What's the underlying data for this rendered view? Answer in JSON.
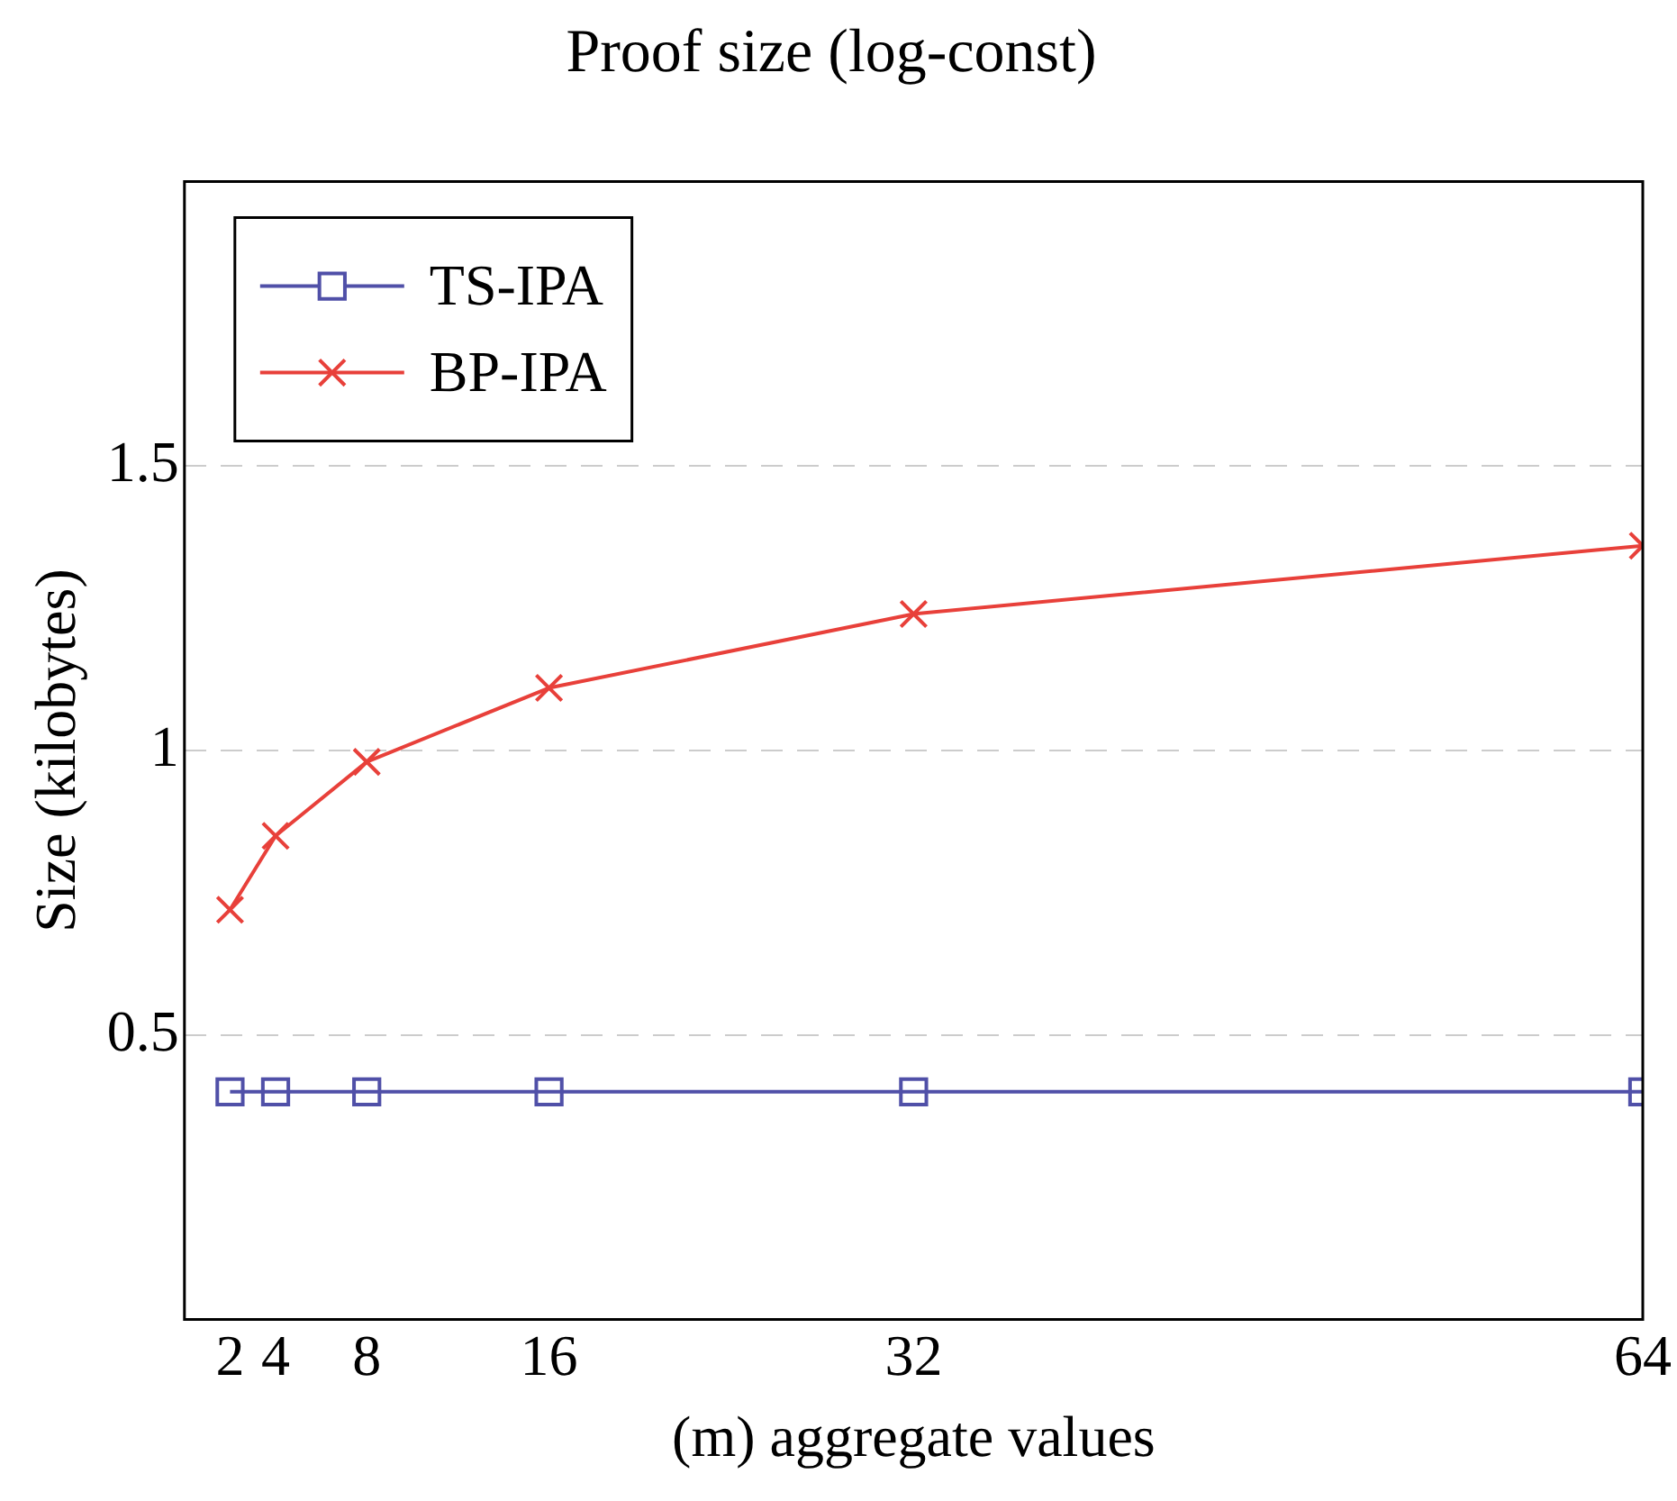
{
  "chart_data": {
    "type": "line",
    "title": "Proof size (log-const)",
    "xlabel": "(m) aggregate values",
    "ylabel": "Size (kilobytes)",
    "x": [
      2,
      4,
      8,
      16,
      32,
      64
    ],
    "series": [
      {
        "name": "TS-IPA",
        "color": "#5050a8",
        "marker": "square",
        "values": [
          0.4,
          0.4,
          0.4,
          0.4,
          0.4,
          0.4
        ]
      },
      {
        "name": "BP-IPA",
        "color": "#e8403a",
        "marker": "cross",
        "values": [
          0.72,
          0.85,
          0.98,
          1.11,
          1.24,
          1.36
        ]
      }
    ],
    "xlim": [
      0,
      64
    ],
    "xticks": [
      2,
      4,
      8,
      16,
      32,
      64
    ],
    "ylim": [
      0,
      2
    ],
    "yticks": [
      0.5,
      1,
      1.5
    ],
    "grid": "y",
    "legend": "top left",
    "line_style": "solid"
  }
}
